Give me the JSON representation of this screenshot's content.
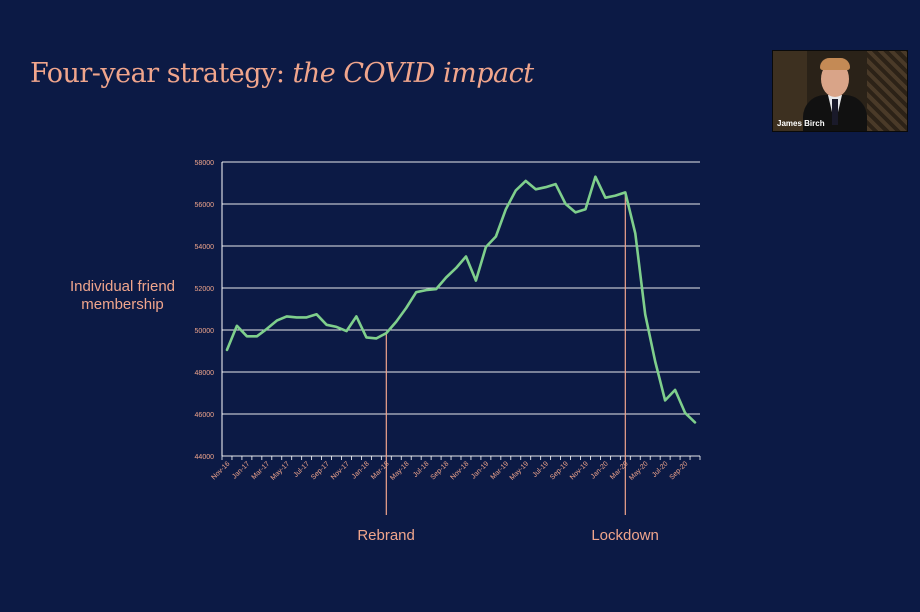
{
  "slide": {
    "title_plain": "Four-year strategy: ",
    "title_italic": "the COVID impact"
  },
  "video": {
    "participant_name": "James Birch"
  },
  "colors": {
    "background": "#0c1a45",
    "accent": "#f0a58c",
    "line": "#7fcf8c",
    "grid": "#ffffff"
  },
  "chart_data": {
    "type": "line",
    "title": "",
    "ylabel": "Individual friend membership",
    "xlabel": "",
    "ylim": [
      44000,
      58000
    ],
    "yticks": [
      44000,
      46000,
      48000,
      50000,
      52000,
      54000,
      56000,
      58000
    ],
    "x_tick_labels": [
      "Nov-16",
      "Jan-17",
      "Mar-17",
      "May-17",
      "Jul-17",
      "Sep-17",
      "Nov-17",
      "Jan-18",
      "Mar-18",
      "May-18",
      "Jul-18",
      "Sep-18",
      "Nov-18",
      "Jan-19",
      "Mar-19",
      "May-19",
      "Jul-19",
      "Sep-19",
      "Nov-19",
      "Jan-20",
      "Mar-20",
      "May-20",
      "Jul-20",
      "Sep-20"
    ],
    "series": [
      {
        "x": [
          "Nov-16",
          "Dec-16",
          "Jan-17",
          "Feb-17",
          "Mar-17",
          "Apr-17",
          "May-17",
          "Jun-17",
          "Jul-17",
          "Aug-17",
          "Sep-17",
          "Oct-17",
          "Nov-17",
          "Dec-17",
          "Jan-18",
          "Feb-18",
          "Mar-18",
          "Apr-18",
          "May-18",
          "Jun-18",
          "Jul-18",
          "Aug-18",
          "Sep-18",
          "Oct-18",
          "Nov-18",
          "Dec-18",
          "Jan-19",
          "Feb-19",
          "Mar-19",
          "Apr-19",
          "May-19",
          "Jun-19",
          "Jul-19",
          "Aug-19",
          "Sep-19",
          "Oct-19",
          "Nov-19",
          "Dec-19",
          "Jan-20",
          "Feb-20",
          "Mar-20",
          "Apr-20",
          "May-20",
          "Jun-20",
          "Jul-20",
          "Aug-20",
          "Sep-20",
          "Oct-20"
        ],
        "values": [
          49050,
          50200,
          49700,
          49700,
          50050,
          50450,
          50650,
          50600,
          50600,
          50750,
          50250,
          50150,
          49950,
          50650,
          49650,
          49600,
          49850,
          50400,
          51050,
          51800,
          51900,
          51950,
          52500,
          52950,
          53500,
          52350,
          53950,
          54450,
          55750,
          56650,
          57100,
          56700,
          56800,
          56950,
          56000,
          55600,
          55750,
          57300,
          56300,
          56400,
          56550,
          54600,
          50750,
          48500,
          46650,
          47150,
          46050,
          45600
        ]
      }
    ],
    "annotations": [
      {
        "label": "Rebrand",
        "x": "Mar-18"
      },
      {
        "label": "Lockdown",
        "x": "Mar-20"
      }
    ],
    "grid": true
  }
}
